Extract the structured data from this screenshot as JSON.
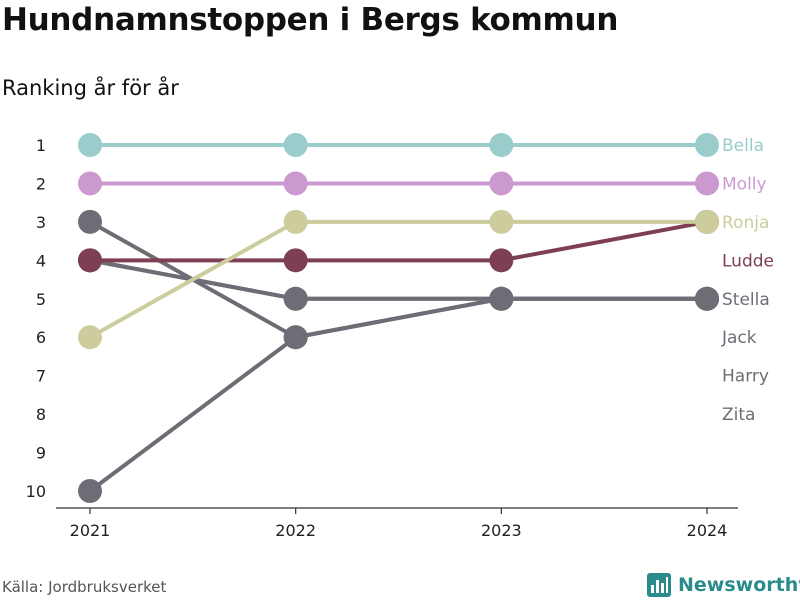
{
  "title": "Hundnamnstoppen i Bergs kommun",
  "subtitle": "Ranking år för år",
  "source": "Källa: Jordbruksverket",
  "brand": {
    "name": "Newsworthy",
    "icon": "bar-chart-icon",
    "color": "#2b8a8a"
  },
  "chart_data": {
    "type": "line",
    "variant": "bump-chart",
    "x": [
      "2021",
      "2022",
      "2023",
      "2024"
    ],
    "y_ticks": [
      1,
      2,
      3,
      4,
      5,
      6,
      7,
      8,
      9,
      10
    ],
    "ylim": [
      1,
      10
    ],
    "y_reversed": true,
    "grid": false,
    "legend": "end-labels-right",
    "series": [
      {
        "name": "Zita",
        "values": [
          4,
          5,
          5,
          5
        ],
        "color": "#6e6d75"
      },
      {
        "name": "Harry",
        "values": [
          3,
          6,
          5,
          5
        ],
        "color": "#6e6d75"
      },
      {
        "name": "Jack",
        "values": [
          10,
          6,
          5,
          5
        ],
        "color": "#6e6d75"
      },
      {
        "name": "Stella",
        "values": [
          4,
          5,
          5,
          5
        ],
        "color": "#6e6d75"
      },
      {
        "name": "Ludde",
        "values": [
          4,
          4,
          4,
          3
        ],
        "color": "#7e3f55"
      },
      {
        "name": "Ronja",
        "values": [
          6,
          3,
          3,
          3
        ],
        "color": "#cccc9c"
      },
      {
        "name": "Molly",
        "values": [
          2,
          2,
          2,
          2
        ],
        "color": "#cb99cf"
      },
      {
        "name": "Bella",
        "values": [
          1,
          1,
          1,
          1
        ],
        "color": "#99cccb"
      }
    ],
    "end_labels": [
      {
        "text": "Bella",
        "color": "#99cccb"
      },
      {
        "text": "Molly",
        "color": "#cb99cf"
      },
      {
        "text": "Ronja",
        "color": "#cccc9c"
      },
      {
        "text": "Ludde",
        "color": "#7e3f55"
      },
      {
        "text": "Stella",
        "color": "#6e6d75"
      },
      {
        "text": "Jack",
        "color": "#6e6d75"
      },
      {
        "text": "Harry",
        "color": "#6e6d75"
      },
      {
        "text": "Zita",
        "color": "#6e6d75"
      }
    ]
  }
}
